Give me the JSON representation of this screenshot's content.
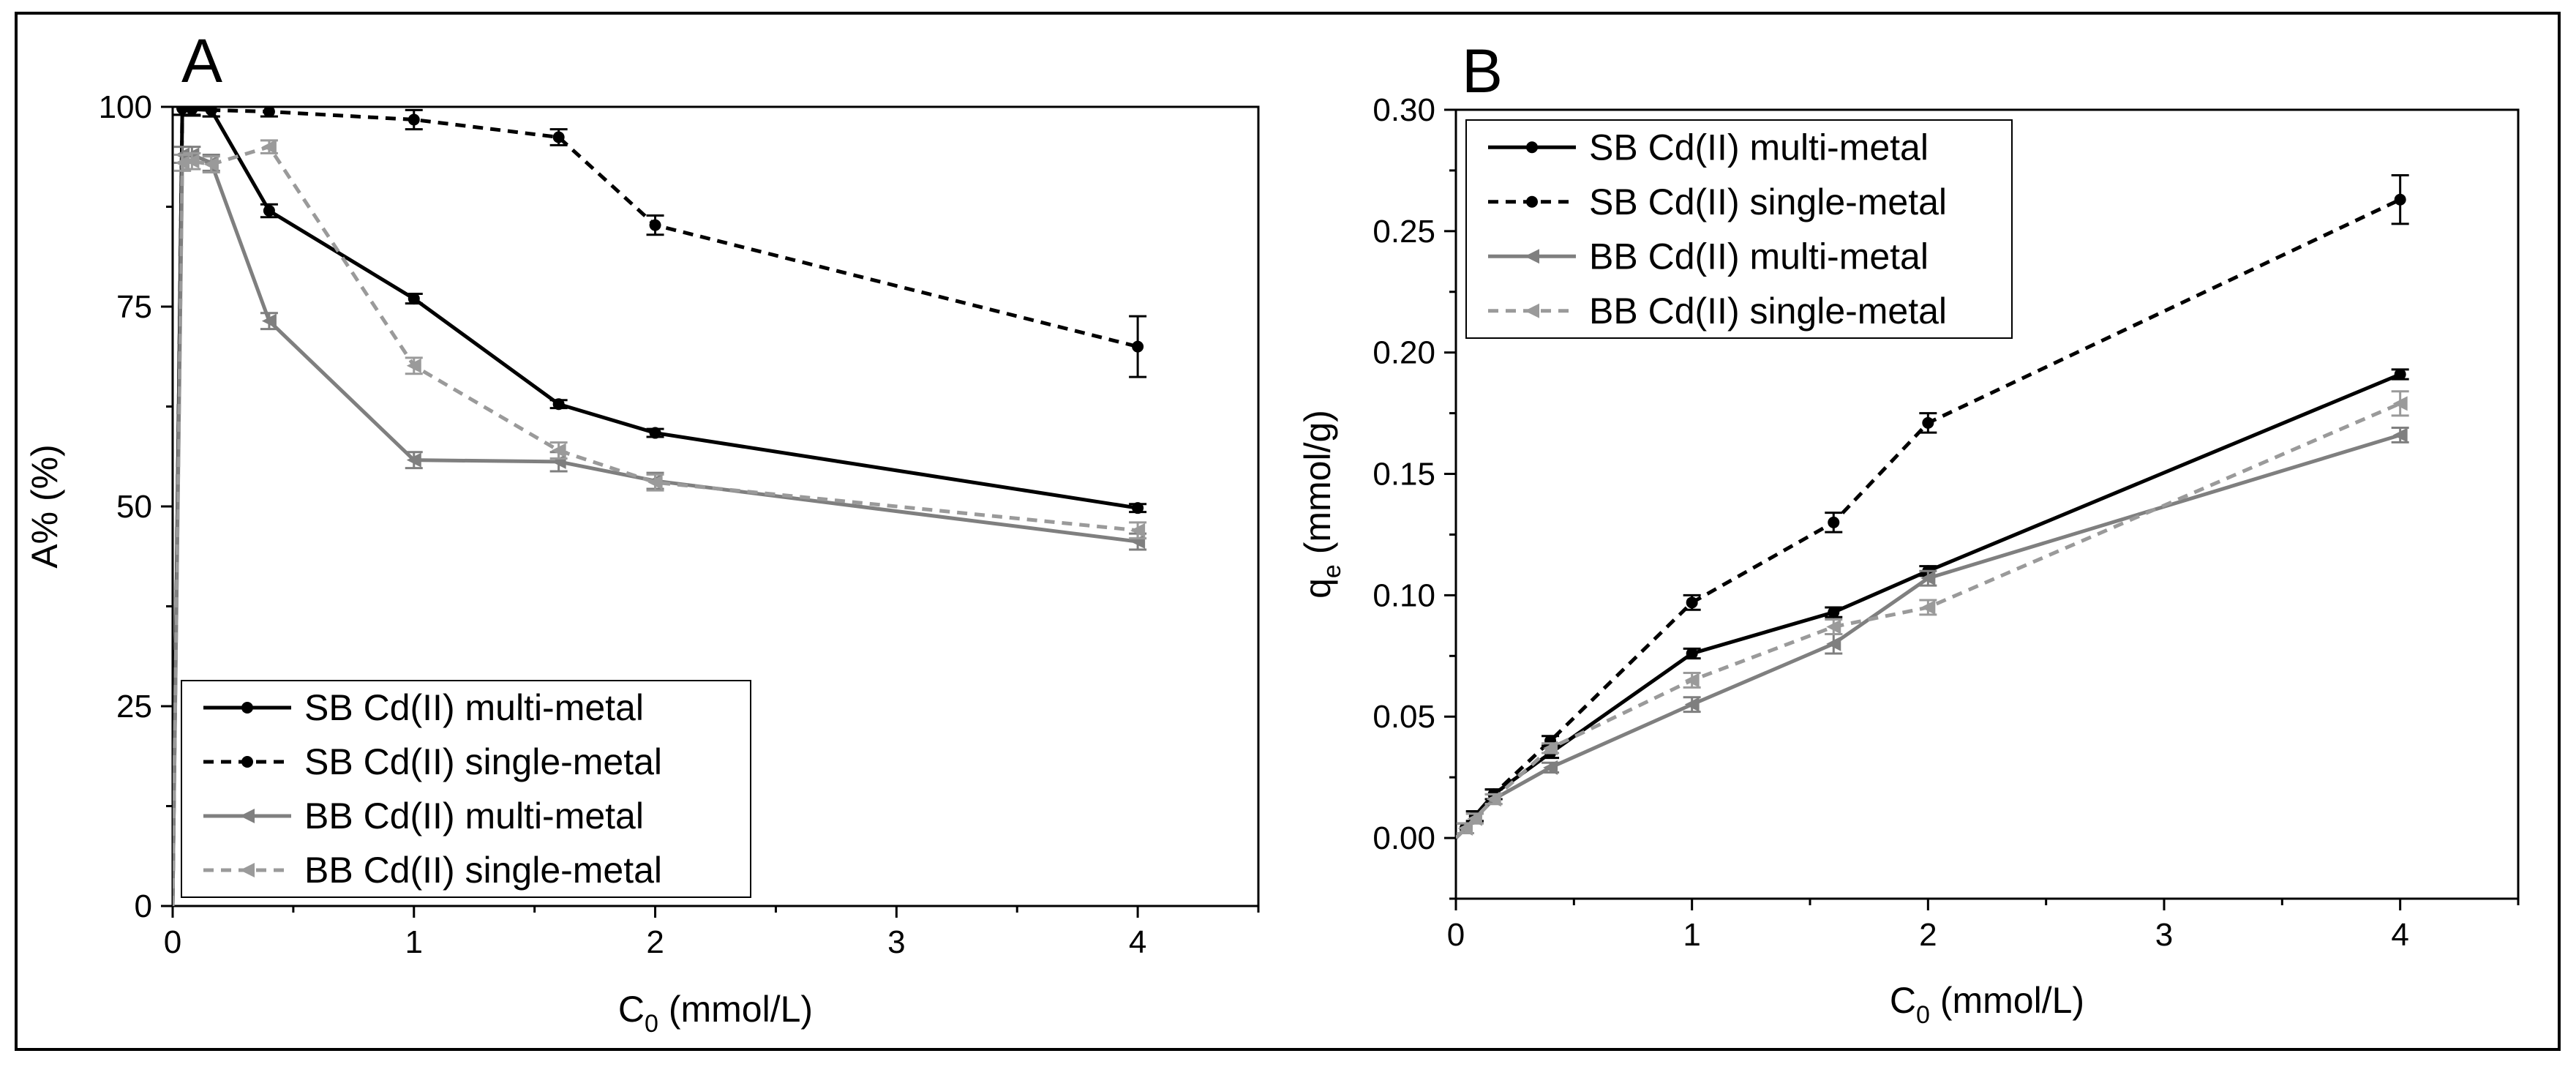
{
  "chart_data": [
    {
      "panel": "A",
      "type": "line",
      "xlabel": "C",
      "xlabel_sub": "0",
      "xlabel_unit": " (mmol/L)",
      "ylabel": "A% (%)",
      "xlim": [
        0,
        4.5
      ],
      "ylim": [
        0,
        100
      ],
      "xticks": [
        0,
        1,
        2,
        3,
        4
      ],
      "yticks": [
        0,
        25,
        50,
        75,
        100
      ],
      "xtick_labels": [
        "0",
        "1",
        "2",
        "3",
        "4"
      ],
      "ytick_labels": [
        "0",
        "25",
        "50",
        "75",
        "100"
      ],
      "legend_position": "bottom-left",
      "series": [
        {
          "name": "SB Cd(II) multi-metal",
          "color": "#000000",
          "dash": "solid",
          "marker": "dot",
          "x": [
            0,
            0.04,
            0.08,
            0.16,
            0.4,
            1,
            1.6,
            2,
            4
          ],
          "y": [
            0,
            99.8,
            99.7,
            99.6,
            87,
            76,
            62.8,
            59.2,
            49.8
          ],
          "err": [
            0,
            0.8,
            0.8,
            0.8,
            0.8,
            0.6,
            0.5,
            0.5,
            0.5
          ]
        },
        {
          "name": "SB Cd(II) single-metal",
          "color": "#000000",
          "dash": "dashed",
          "marker": "dot",
          "x": [
            0,
            0.04,
            0.08,
            0.16,
            0.4,
            1,
            1.6,
            2,
            4
          ],
          "y": [
            0,
            99.8,
            99.8,
            99.6,
            99.4,
            98.4,
            96.2,
            85.2,
            70
          ],
          "err": [
            0,
            0.8,
            0.8,
            0.8,
            0.6,
            1.2,
            1.0,
            1.2,
            3.8
          ]
        },
        {
          "name": "BB Cd(II) multi-metal",
          "color": "#7f7f7f",
          "dash": "solid",
          "marker": "triangle-left",
          "x": [
            0,
            0.04,
            0.08,
            0.16,
            0.4,
            1,
            1.6,
            2,
            4
          ],
          "y": [
            0,
            94,
            94,
            93,
            73.2,
            55.8,
            55.6,
            53.2,
            45.6
          ],
          "err": [
            0,
            1.0,
            1.0,
            1.0,
            1.0,
            1.0,
            1.2,
            1.0,
            1.0
          ]
        },
        {
          "name": "BB Cd(II) single-metal",
          "color": "#9a9a9a",
          "dash": "dashed",
          "marker": "triangle-left",
          "x": [
            0,
            0.04,
            0.08,
            0.16,
            0.4,
            1,
            1.6,
            2,
            4
          ],
          "y": [
            0,
            93,
            93.2,
            92.8,
            95,
            67.6,
            57,
            53,
            47
          ],
          "err": [
            0,
            1.0,
            1.0,
            1.0,
            0.8,
            1.0,
            1.0,
            1.0,
            1.0
          ]
        }
      ]
    },
    {
      "panel": "B",
      "type": "line",
      "xlabel": "C",
      "xlabel_sub": "0",
      "xlabel_unit": " (mmol/L)",
      "ylabel": "q",
      "ylabel_sub": "e",
      "ylabel_unit": " (mmol/g)",
      "xlim": [
        0,
        4.5
      ],
      "ylim": [
        -0.025,
        0.3
      ],
      "xticks": [
        0,
        1,
        2,
        3,
        4
      ],
      "yticks": [
        0,
        0.05,
        0.1,
        0.15,
        0.2,
        0.25,
        0.3
      ],
      "xtick_labels": [
        "0",
        "1",
        "2",
        "3",
        "4"
      ],
      "ytick_labels": [
        "0.00",
        "0.05",
        "0.10",
        "0.15",
        "0.20",
        "0.25",
        "0.30"
      ],
      "legend_position": "top-left",
      "series": [
        {
          "name": "SB Cd(II) multi-metal",
          "color": "#000000",
          "dash": "solid",
          "marker": "dot",
          "x": [
            0,
            0.04,
            0.08,
            0.16,
            0.4,
            1,
            1.6,
            2,
            4
          ],
          "y": [
            0,
            0.004,
            0.009,
            0.018,
            0.035,
            0.076,
            0.093,
            0.11,
            0.191
          ],
          "err": [
            0,
            0.002,
            0.002,
            0.002,
            0.002,
            0.002,
            0.002,
            0.002,
            0.002
          ]
        },
        {
          "name": "SB Cd(II) single-metal",
          "color": "#000000",
          "dash": "dashed",
          "marker": "dot",
          "x": [
            0,
            0.04,
            0.08,
            0.16,
            0.4,
            1,
            1.6,
            2,
            4
          ],
          "y": [
            0,
            0.004,
            0.009,
            0.018,
            0.04,
            0.097,
            0.13,
            0.171,
            0.263
          ],
          "err": [
            0,
            0.002,
            0.002,
            0.002,
            0.002,
            0.003,
            0.004,
            0.004,
            0.01
          ]
        },
        {
          "name": "BB Cd(II) multi-metal",
          "color": "#7f7f7f",
          "dash": "solid",
          "marker": "triangle-left",
          "x": [
            0,
            0.04,
            0.08,
            0.16,
            0.4,
            1,
            1.6,
            2,
            4
          ],
          "y": [
            0,
            0.004,
            0.008,
            0.016,
            0.029,
            0.055,
            0.08,
            0.107,
            0.166
          ],
          "err": [
            0,
            0.002,
            0.002,
            0.002,
            0.002,
            0.003,
            0.004,
            0.003,
            0.003
          ]
        },
        {
          "name": "BB Cd(II) single-metal",
          "color": "#9a9a9a",
          "dash": "dashed",
          "marker": "triangle-left",
          "x": [
            0,
            0.04,
            0.08,
            0.16,
            0.4,
            1,
            1.6,
            2,
            4
          ],
          "y": [
            0,
            0.004,
            0.008,
            0.016,
            0.037,
            0.065,
            0.087,
            0.095,
            0.179
          ],
          "err": [
            0,
            0.002,
            0.002,
            0.002,
            0.002,
            0.003,
            0.003,
            0.003,
            0.005
          ]
        }
      ]
    }
  ]
}
